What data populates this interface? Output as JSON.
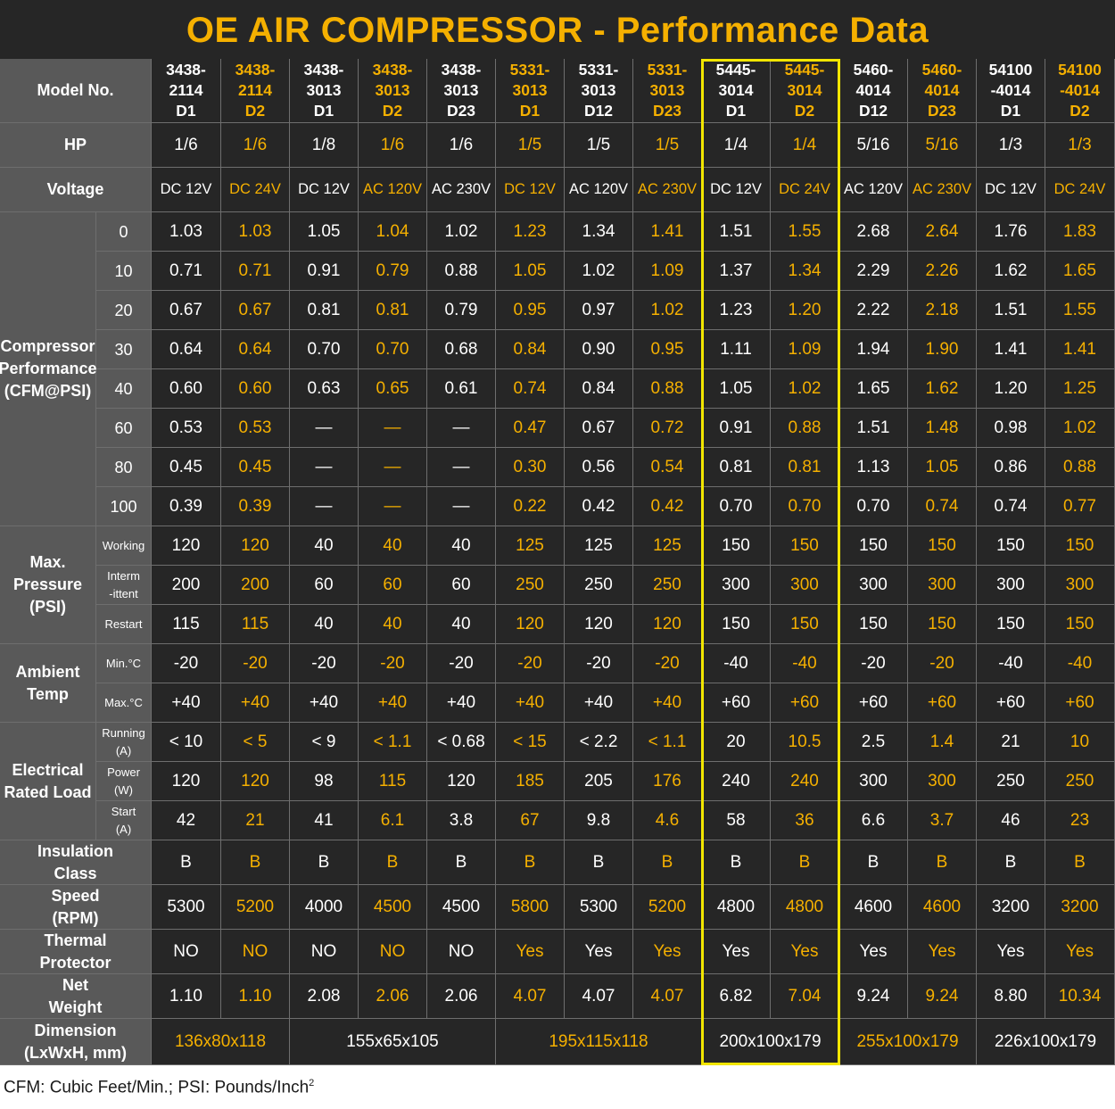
{
  "title": "OE AIR COMPRESSOR - Performance Data",
  "header": {
    "model_label": "Model No.",
    "hp_label": "HP",
    "voltage_label": "Voltage"
  },
  "models": [
    "3438-\n2114\nD1",
    "3438-\n2114\nD2",
    "3438-\n3013\nD1",
    "3438-\n3013\nD2",
    "3438-\n3013\nD23",
    "5331-\n3013\nD1",
    "5331-\n3013\nD12",
    "5331-\n3013\nD23",
    "5445-\n3014\nD1",
    "5445-\n3014\nD2",
    "5460-\n4014\nD12",
    "5460-\n4014\nD23",
    "54100\n-4014\nD1",
    "54100\n-4014\nD2"
  ],
  "hp": [
    "1/6",
    "1/6",
    "1/8",
    "1/6",
    "1/6",
    "1/5",
    "1/5",
    "1/5",
    "1/4",
    "1/4",
    "5/16",
    "5/16",
    "1/3",
    "1/3"
  ],
  "voltage": [
    "DC 12V",
    "DC 24V",
    "DC 12V",
    "AC 120V",
    "AC 230V",
    "DC 12V",
    "AC 120V",
    "AC 230V",
    "DC 12V",
    "DC 24V",
    "AC 120V",
    "AC 230V",
    "DC 12V",
    "DC 24V"
  ],
  "groups": {
    "performance": "Compressor\nPerformance\n(CFM@PSI)",
    "pressure": "Max.\nPressure\n(PSI)",
    "ambient": "Ambient\nTemp",
    "electrical": "Electrical\nRated Load",
    "insulation": "Insulation\nClass",
    "speed": "Speed\n(RPM)",
    "thermal": "Thermal\nProtector",
    "weight": "Net\nWeight",
    "dimension": "Dimension\n(LxWxH, mm)"
  },
  "performance": [
    {
      "psi": "0",
      "values": [
        "1.03",
        "1.03",
        "1.05",
        "1.04",
        "1.02",
        "1.23",
        "1.34",
        "1.41",
        "1.51",
        "1.55",
        "2.68",
        "2.64",
        "1.76",
        "1.83"
      ]
    },
    {
      "psi": "10",
      "values": [
        "0.71",
        "0.71",
        "0.91",
        "0.79",
        "0.88",
        "1.05",
        "1.02",
        "1.09",
        "1.37",
        "1.34",
        "2.29",
        "2.26",
        "1.62",
        "1.65"
      ]
    },
    {
      "psi": "20",
      "values": [
        "0.67",
        "0.67",
        "0.81",
        "0.81",
        "0.79",
        "0.95",
        "0.97",
        "1.02",
        "1.23",
        "1.20",
        "2.22",
        "2.18",
        "1.51",
        "1.55"
      ]
    },
    {
      "psi": "30",
      "values": [
        "0.64",
        "0.64",
        "0.70",
        "0.70",
        "0.68",
        "0.84",
        "0.90",
        "0.95",
        "1.11",
        "1.09",
        "1.94",
        "1.90",
        "1.41",
        "1.41"
      ]
    },
    {
      "psi": "40",
      "values": [
        "0.60",
        "0.60",
        "0.63",
        "0.65",
        "0.61",
        "0.74",
        "0.84",
        "0.88",
        "1.05",
        "1.02",
        "1.65",
        "1.62",
        "1.20",
        "1.25"
      ]
    },
    {
      "psi": "60",
      "values": [
        "0.53",
        "0.53",
        "—",
        "—",
        "—",
        "0.47",
        "0.67",
        "0.72",
        "0.91",
        "0.88",
        "1.51",
        "1.48",
        "0.98",
        "1.02"
      ]
    },
    {
      "psi": "80",
      "values": [
        "0.45",
        "0.45",
        "—",
        "—",
        "—",
        "0.30",
        "0.56",
        "0.54",
        "0.81",
        "0.81",
        "1.13",
        "1.05",
        "0.86",
        "0.88"
      ]
    },
    {
      "psi": "100",
      "values": [
        "0.39",
        "0.39",
        "—",
        "—",
        "—",
        "0.22",
        "0.42",
        "0.42",
        "0.70",
        "0.70",
        "0.70",
        "0.74",
        "0.74",
        "0.77"
      ]
    }
  ],
  "pressure": [
    {
      "label": "Working",
      "values": [
        "120",
        "120",
        "40",
        "40",
        "40",
        "125",
        "125",
        "125",
        "150",
        "150",
        "150",
        "150",
        "150",
        "150"
      ]
    },
    {
      "label": "Interm\n-ittent",
      "values": [
        "200",
        "200",
        "60",
        "60",
        "60",
        "250",
        "250",
        "250",
        "300",
        "300",
        "300",
        "300",
        "300",
        "300"
      ]
    },
    {
      "label": "Restart",
      "values": [
        "115",
        "115",
        "40",
        "40",
        "40",
        "120",
        "120",
        "120",
        "150",
        "150",
        "150",
        "150",
        "150",
        "150"
      ]
    }
  ],
  "ambient": [
    {
      "label": "Min.°C",
      "values": [
        "-20",
        "-20",
        "-20",
        "-20",
        "-20",
        "-20",
        "-20",
        "-20",
        "-40",
        "-40",
        "-20",
        "-20",
        "-40",
        "-40"
      ]
    },
    {
      "label": "Max.°C",
      "values": [
        "+40",
        "+40",
        "+40",
        "+40",
        "+40",
        "+40",
        "+40",
        "+40",
        "+60",
        "+60",
        "+60",
        "+60",
        "+60",
        "+60"
      ]
    }
  ],
  "electrical": [
    {
      "label": "Running\n(A)",
      "values": [
        "< 10",
        "< 5",
        "< 9",
        "< 1.1",
        "< 0.68",
        "< 15",
        "< 2.2",
        "< 1.1",
        "20",
        "10.5",
        "2.5",
        "1.4",
        "21",
        "10"
      ]
    },
    {
      "label": "Power\n(W)",
      "values": [
        "120",
        "120",
        "98",
        "115",
        "120",
        "185",
        "205",
        "176",
        "240",
        "240",
        "300",
        "300",
        "250",
        "250"
      ]
    },
    {
      "label": "Start\n(A)",
      "values": [
        "42",
        "21",
        "41",
        "6.1",
        "3.8",
        "67",
        "9.8",
        "4.6",
        "58",
        "36",
        "6.6",
        "3.7",
        "46",
        "23"
      ]
    }
  ],
  "insulation": [
    "B",
    "B",
    "B",
    "B",
    "B",
    "B",
    "B",
    "B",
    "B",
    "B",
    "B",
    "B",
    "B",
    "B"
  ],
  "speed": [
    "5300",
    "5200",
    "4000",
    "4500",
    "4500",
    "5800",
    "5300",
    "5200",
    "4800",
    "4800",
    "4600",
    "4600",
    "3200",
    "3200"
  ],
  "thermal": [
    "NO",
    "NO",
    "NO",
    "NO",
    "NO",
    "Yes",
    "Yes",
    "Yes",
    "Yes",
    "Yes",
    "Yes",
    "Yes",
    "Yes",
    "Yes"
  ],
  "weight": [
    "1.10",
    "1.10",
    "2.08",
    "2.06",
    "2.06",
    "4.07",
    "4.07",
    "4.07",
    "6.82",
    "7.04",
    "9.24",
    "9.24",
    "8.80",
    "10.34"
  ],
  "dimension": [
    {
      "text": "136x80x118",
      "span": 2,
      "gold": true
    },
    {
      "text": "155x65x105",
      "span": 3,
      "gold": false
    },
    {
      "text": "195x115x118",
      "span": 3,
      "gold": true
    },
    {
      "text": "200x100x179",
      "span": 2,
      "gold": false
    },
    {
      "text": "255x100x179",
      "span": 2,
      "gold": true
    },
    {
      "text": "226x100x179",
      "span": 2,
      "gold": false
    }
  ],
  "footnote": {
    "text": "CFM: Cubic Feet/Min.;  PSI: Pounds/Inch",
    "sup": "2"
  },
  "colors": {
    "background": "#262626",
    "header": "#595959",
    "accent": "#f5b000",
    "highlight": "#f2e600"
  }
}
